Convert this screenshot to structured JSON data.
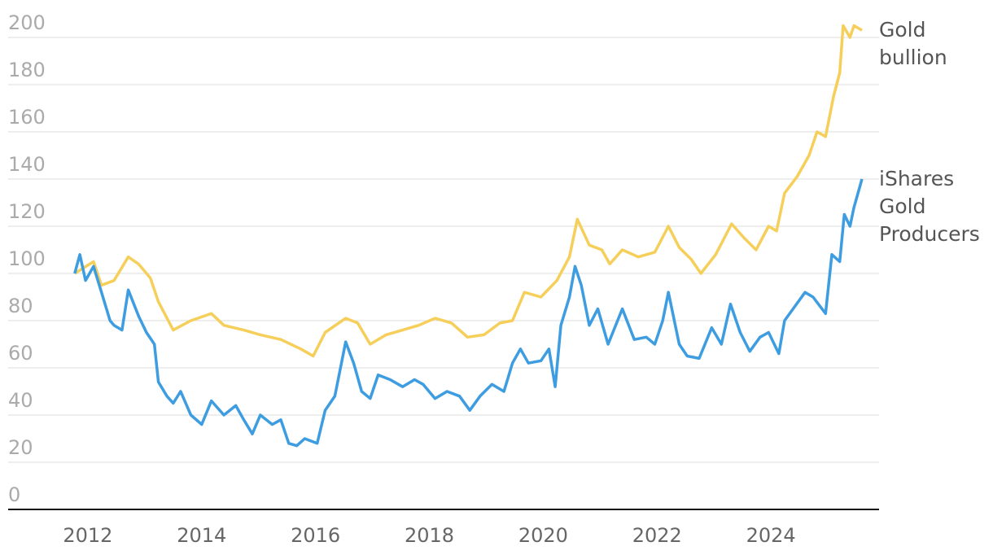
{
  "chart_data": {
    "type": "line",
    "xlim": [
      2010.6,
      2025.9
    ],
    "xticks": [
      2012,
      2014,
      2016,
      2018,
      2020,
      2022,
      2024
    ],
    "ylim": [
      0,
      200
    ],
    "yticks": [
      0,
      20,
      40,
      60,
      80,
      100,
      120,
      140,
      160,
      180,
      200
    ],
    "grid": true,
    "series": [
      {
        "name": "Gold bullion",
        "color": "#f5cf5a",
        "x": [
          2011.77,
          2012.1,
          2012.24,
          2012.46,
          2012.71,
          2012.89,
          2013.1,
          2013.24,
          2013.5,
          2013.81,
          2014.17,
          2014.39,
          2014.74,
          2015.03,
          2015.39,
          2015.74,
          2015.96,
          2016.17,
          2016.53,
          2016.74,
          2016.96,
          2017.24,
          2017.53,
          2017.81,
          2018.1,
          2018.39,
          2018.67,
          2018.96,
          2019.24,
          2019.46,
          2019.67,
          2019.96,
          2020.24,
          2020.46,
          2020.6,
          2020.81,
          2021.03,
          2021.17,
          2021.39,
          2021.67,
          2021.96,
          2022.2,
          2022.39,
          2022.6,
          2022.77,
          2023.03,
          2023.31,
          2023.53,
          2023.74,
          2023.96,
          2024.1,
          2024.24,
          2024.46,
          2024.67,
          2024.81,
          2024.96,
          2025.1,
          2025.21,
          2025.27,
          2025.39,
          2025.46,
          2025.6
        ],
        "values": [
          100,
          105,
          95,
          97,
          107,
          104,
          98,
          88,
          76,
          80,
          83,
          78,
          76,
          74,
          72,
          68,
          65,
          75,
          81,
          79,
          70,
          74,
          76,
          78,
          81,
          79,
          73,
          74,
          79,
          80,
          92,
          90,
          97,
          107,
          123,
          112,
          110,
          104,
          110,
          107,
          109,
          120,
          111,
          106,
          100,
          108,
          121,
          115,
          110,
          120,
          118,
          134,
          141,
          150,
          160,
          158,
          175,
          185,
          205,
          200,
          205,
          203
        ]
      },
      {
        "name": "iShares Gold Producers",
        "color": "#3d9de0",
        "x": [
          2011.77,
          2011.86,
          2011.96,
          2012.1,
          2012.24,
          2012.39,
          2012.46,
          2012.6,
          2012.71,
          2012.89,
          2013.03,
          2013.17,
          2013.24,
          2013.39,
          2013.5,
          2013.63,
          2013.81,
          2014.0,
          2014.17,
          2014.39,
          2014.6,
          2014.74,
          2014.89,
          2015.03,
          2015.24,
          2015.39,
          2015.53,
          2015.67,
          2015.81,
          2016.03,
          2016.17,
          2016.34,
          2016.53,
          2016.67,
          2016.81,
          2016.96,
          2017.1,
          2017.31,
          2017.53,
          2017.74,
          2017.89,
          2018.1,
          2018.31,
          2018.53,
          2018.71,
          2018.89,
          2019.1,
          2019.31,
          2019.46,
          2019.6,
          2019.74,
          2019.96,
          2020.1,
          2020.21,
          2020.31,
          2020.46,
          2020.56,
          2020.67,
          2020.81,
          2020.96,
          2021.14,
          2021.39,
          2021.6,
          2021.81,
          2021.96,
          2022.1,
          2022.2,
          2022.39,
          2022.53,
          2022.74,
          2022.96,
          2023.13,
          2023.29,
          2023.46,
          2023.63,
          2023.81,
          2023.96,
          2024.14,
          2024.24,
          2024.39,
          2024.6,
          2024.74,
          2024.96,
          2025.07,
          2025.21,
          2025.29,
          2025.39,
          2025.46,
          2025.6
        ],
        "values": [
          100,
          108,
          97,
          103,
          92,
          80,
          78,
          76,
          93,
          82,
          75,
          70,
          54,
          48,
          45,
          50,
          40,
          36,
          46,
          40,
          44,
          38,
          32,
          40,
          36,
          38,
          28,
          27,
          30,
          28,
          42,
          48,
          71,
          62,
          50,
          47,
          57,
          55,
          52,
          55,
          53,
          47,
          50,
          48,
          42,
          48,
          53,
          50,
          62,
          68,
          62,
          63,
          68,
          52,
          78,
          90,
          103,
          95,
          78,
          85,
          70,
          85,
          72,
          73,
          70,
          80,
          92,
          70,
          65,
          64,
          77,
          70,
          87,
          75,
          67,
          73,
          75,
          66,
          80,
          85,
          92,
          90,
          83,
          108,
          105,
          125,
          120,
          128,
          140
        ]
      }
    ]
  }
}
